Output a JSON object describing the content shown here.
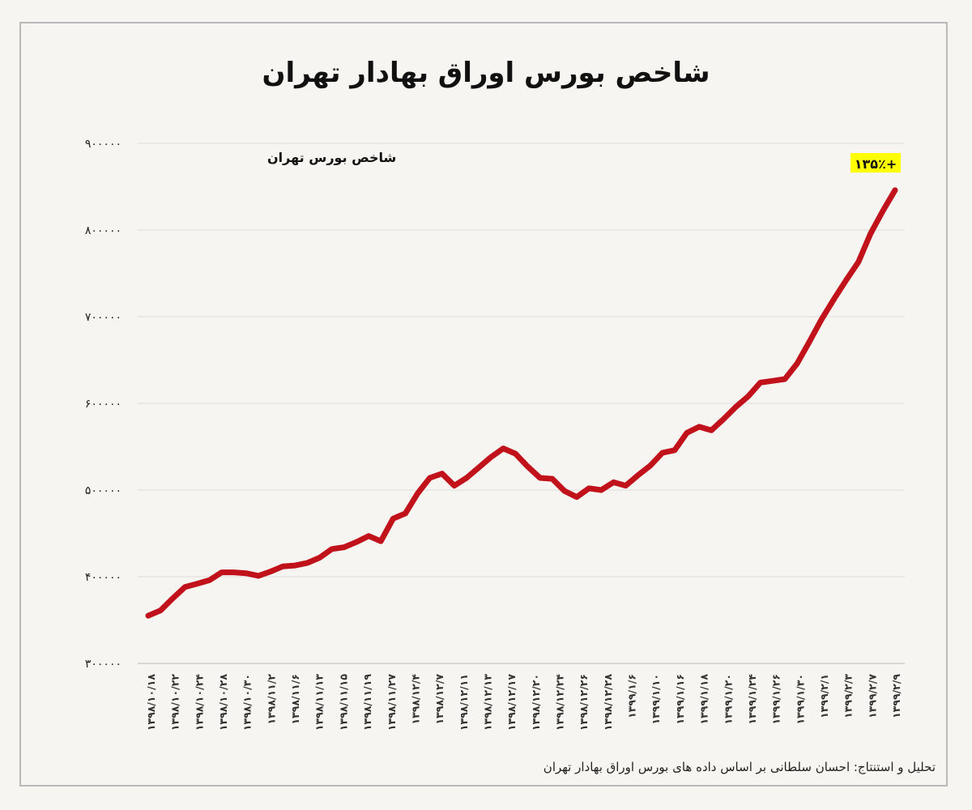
{
  "chart_data": {
    "type": "line",
    "title": "شاخص بورس اوراق بهادار تهران",
    "series": [
      {
        "name": "شاخص بورس تهران",
        "color": "#c1121b",
        "values": [
          355000,
          361000,
          375000,
          388000,
          392000,
          396000,
          405000,
          405000,
          404000,
          401000,
          406000,
          412000,
          413000,
          416000,
          422000,
          432000,
          434000,
          440000,
          447000,
          441000,
          467000,
          473000,
          496000,
          514000,
          519000,
          505000,
          514000,
          526000,
          538000,
          548000,
          542000,
          527000,
          514000,
          513000,
          499000,
          492000,
          502000,
          500000,
          509000,
          505000,
          517000,
          528000,
          543000,
          546000,
          566000,
          573000,
          569000,
          582000,
          596000,
          608000,
          624000,
          626000,
          628000,
          646000,
          671000,
          697000,
          720000,
          742000,
          763000,
          796000,
          822000,
          846000
        ]
      }
    ],
    "x_tick_labels": [
      "۱۳۹۸/۱۰/۱۸",
      "۱۳۹۸/۱۰/۲۲",
      "۱۳۹۸/۱۰/۲۴",
      "۱۳۹۸/۱۰/۲۸",
      "۱۳۹۸/۱۰/۳۰",
      "۱۳۹۸/۱۱/۲",
      "۱۳۹۸/۱۱/۶",
      "۱۳۹۸/۱۱/۱۳",
      "۱۳۹۸/۱۱/۱۵",
      "۱۳۹۸/۱۱/۱۹",
      "۱۳۹۸/۱۱/۲۷",
      "۱۳۹۸/۱۲/۴",
      "۱۳۹۸/۱۲/۷",
      "۱۳۹۸/۱۲/۱۱",
      "۱۳۹۸/۱۲/۱۳",
      "۱۳۹۸/۱۲/۱۷",
      "۱۳۹۸/۱۲/۲۰",
      "۱۳۹۸/۱۲/۲۴",
      "۱۳۹۸/۱۲/۲۶",
      "۱۳۹۸/۱۲/۲۸",
      "۱۳۹۹/۱/۶",
      "۱۳۹۹/۱/۱۰",
      "۱۳۹۹/۱/۱۶",
      "۱۳۹۹/۱/۱۸",
      "۱۳۹۹/۱/۲۰",
      "۱۳۹۹/۱/۲۴",
      "۱۳۹۹/۱/۲۶",
      "۱۳۹۹/۱/۳۰",
      "۱۳۹۹/۲/۱",
      "۱۳۹۹/۲/۳",
      "۱۳۹۹/۲/۷",
      "۱۳۹۹/۲/۹"
    ],
    "y_ticks": [
      300000,
      400000,
      500000,
      600000,
      700000,
      800000,
      900000
    ],
    "y_tick_labels": [
      "۳۰۰۰۰۰",
      "۴۰۰۰۰۰",
      "۵۰۰۰۰۰",
      "۶۰۰۰۰۰",
      "۷۰۰۰۰۰",
      "۸۰۰۰۰۰",
      "۹۰۰۰۰۰"
    ],
    "ylim": [
      300000,
      900000
    ],
    "grid": true,
    "annotation": {
      "text": "+۱۳۵٪",
      "color": "#ffff00"
    }
  },
  "footer": {
    "credit": "تحلیل و استنتاج: احسان سلطانی بر اساس داده های بورس اوراق بهادار تهران"
  }
}
